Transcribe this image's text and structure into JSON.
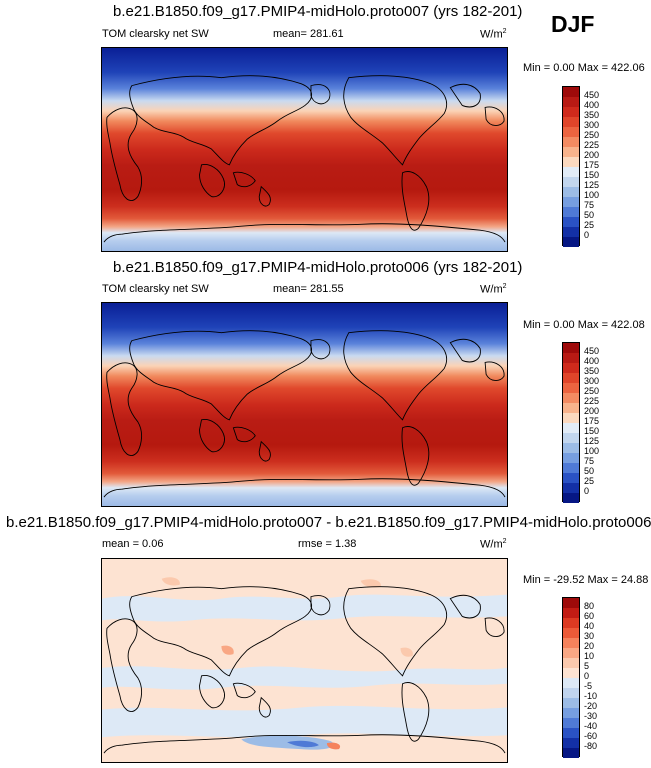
{
  "season": "DJF",
  "panels": [
    {
      "title": "b.e21.B1850.f09_g17.PMIP4-midHolo.proto007 (yrs 182-201)",
      "variable": "TOM clearsky net SW",
      "mean_label": "mean= 281.61",
      "units": "W/m",
      "units_sup": "2",
      "minmax_label": "Min =   0.00 Max = 422.06",
      "colorbar_labels": [
        "450",
        "400",
        "350",
        "300",
        "250",
        "225",
        "200",
        "175",
        "150",
        "125",
        "100",
        "75",
        "50",
        "25",
        "0"
      ],
      "colorbar_colors": [
        "#9e0a0a",
        "#b81a14",
        "#cf2a1c",
        "#e0452a",
        "#ec6440",
        "#f38b62",
        "#f8b38c",
        "#fbd9bf",
        "#e2ecf7",
        "#c2d6ee",
        "#9cbce6",
        "#769ee0",
        "#4f7ad6",
        "#2a52c4",
        "#1330a6",
        "#061784"
      ]
    },
    {
      "title": "b.e21.B1850.f09_g17.PMIP4-midHolo.proto006 (yrs 182-201)",
      "variable": "TOM clearsky net SW",
      "mean_label": "mean= 281.55",
      "units": "W/m",
      "units_sup": "2",
      "minmax_label": "Min =   0.00 Max = 422.08",
      "colorbar_labels": [
        "450",
        "400",
        "350",
        "300",
        "250",
        "225",
        "200",
        "175",
        "150",
        "125",
        "100",
        "75",
        "50",
        "25",
        "0"
      ],
      "colorbar_colors": [
        "#9e0a0a",
        "#b81a14",
        "#cf2a1c",
        "#e0452a",
        "#ec6440",
        "#f38b62",
        "#f8b38c",
        "#fbd9bf",
        "#e2ecf7",
        "#c2d6ee",
        "#9cbce6",
        "#769ee0",
        "#4f7ad6",
        "#2a52c4",
        "#1330a6",
        "#061784"
      ]
    },
    {
      "title": "b.e21.B1850.f09_g17.PMIP4-midHolo.proto007 - b.e21.B1850.f09_g17.PMIP4-midHolo.proto006",
      "mean_label": "mean =   0.06",
      "rmse_label": "rmse =   1.38",
      "units": "W/m",
      "units_sup": "2",
      "minmax_label": "Min = -29.52 Max =  24.88",
      "colorbar_labels": [
        "80",
        "60",
        "40",
        "30",
        "20",
        "10",
        "5",
        "0",
        "-5",
        "-10",
        "-20",
        "-30",
        "-40",
        "-60",
        "-80"
      ],
      "colorbar_colors": [
        "#9e0a0a",
        "#c21c14",
        "#dc3a22",
        "#ec5a38",
        "#f5825c",
        "#f9a784",
        "#fbc9ad",
        "#fde3d2",
        "#dde9f6",
        "#c0d4ee",
        "#9cbce6",
        "#769ee0",
        "#4f7ad6",
        "#2a52c4",
        "#1330a6",
        "#061784"
      ]
    }
  ]
}
